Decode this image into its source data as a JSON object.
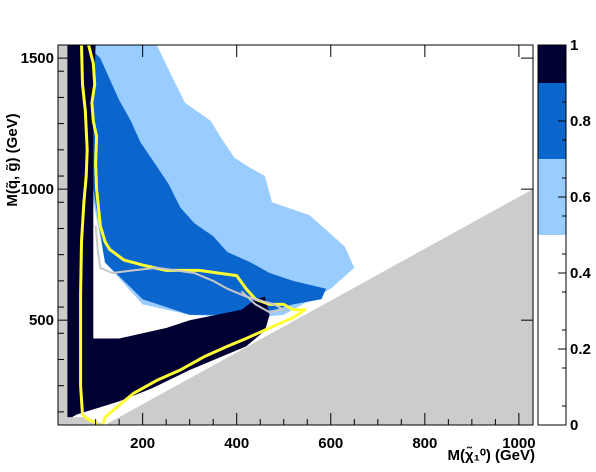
{
  "chart_data": {
    "type": "heatmap",
    "title": "",
    "xlabel": "M(χ̃₁⁰) (GeV)",
    "ylabel": "M(q̃, g̃) (GeV)",
    "xlim": [
      20,
      1030
    ],
    "ylim": [
      100,
      1550
    ],
    "xticks": [
      200,
      400,
      600,
      800,
      1000
    ],
    "xtick_labels": [
      "200",
      "400",
      "600",
      "800",
      "1000"
    ],
    "yticks": [
      500,
      1000,
      1500
    ],
    "ytick_labels": [
      "500",
      "1000",
      "1500"
    ],
    "colorbar": {
      "range": [
        0,
        1
      ],
      "ticks": [
        0,
        0.2,
        0.4,
        0.6,
        0.8,
        1
      ],
      "tick_labels": [
        "0",
        "0.2",
        "0.4",
        "0.6",
        "0.8",
        "1"
      ],
      "bands": [
        {
          "from": 0.9,
          "to": 1.0,
          "color": "#000033"
        },
        {
          "from": 0.7,
          "to": 0.9,
          "color": "#0a66cc"
        },
        {
          "from": 0.5,
          "to": 0.7,
          "color": "#99ccff"
        },
        {
          "from": 0.0,
          "to": 0.5,
          "color": "#ffffff"
        }
      ]
    },
    "excluded_color": "#cccccc",
    "regions": [
      {
        "level": 0.6,
        "color": "#99ccff",
        "boundary": [
          [
            230,
            1550
          ],
          [
            265,
            1420
          ],
          [
            290,
            1330
          ],
          [
            345,
            1260
          ],
          [
            365,
            1200
          ],
          [
            395,
            1120
          ],
          [
            430,
            1080
          ],
          [
            460,
            1050
          ],
          [
            475,
            950
          ],
          [
            555,
            900
          ],
          [
            630,
            780
          ],
          [
            650,
            700
          ],
          [
            600,
            620
          ],
          [
            540,
            560
          ],
          [
            500,
            520
          ],
          [
            430,
            510
          ],
          [
            300,
            520
          ],
          [
            200,
            560
          ],
          [
            120,
            720
          ],
          [
            90,
            1000
          ],
          [
            80,
            1550
          ]
        ]
      },
      {
        "level": 0.8,
        "color": "#0a66cc",
        "boundary": [
          [
            80,
            1550
          ],
          [
            110,
            1500
          ],
          [
            130,
            1420
          ],
          [
            150,
            1340
          ],
          [
            175,
            1260
          ],
          [
            195,
            1180
          ],
          [
            225,
            1100
          ],
          [
            255,
            1020
          ],
          [
            280,
            930
          ],
          [
            310,
            870
          ],
          [
            350,
            820
          ],
          [
            380,
            760
          ],
          [
            430,
            720
          ],
          [
            470,
            680
          ],
          [
            520,
            650
          ],
          [
            590,
            620
          ],
          [
            580,
            580
          ],
          [
            520,
            560
          ],
          [
            480,
            540
          ],
          [
            420,
            520
          ],
          [
            300,
            520
          ],
          [
            200,
            580
          ],
          [
            120,
            720
          ],
          [
            95,
            1000
          ],
          [
            80,
            1550
          ]
        ]
      },
      {
        "level": 1.0,
        "color": "#000033",
        "boundary": [
          [
            60,
            1550
          ],
          [
            100,
            1550
          ],
          [
            95,
            1300
          ],
          [
            95,
            800
          ],
          [
            95,
            430
          ],
          [
            110,
            430
          ],
          [
            150,
            430
          ],
          [
            250,
            470
          ],
          [
            300,
            500
          ],
          [
            410,
            540
          ],
          [
            440,
            580
          ],
          [
            460,
            590
          ],
          [
            470,
            520
          ],
          [
            460,
            460
          ],
          [
            420,
            400
          ],
          [
            300,
            310
          ],
          [
            220,
            240
          ],
          [
            150,
            190
          ],
          [
            60,
            140
          ],
          [
            20,
            100
          ],
          [
            20,
            1550
          ]
        ]
      }
    ],
    "excluded_boundary": [
      [
        20,
        100
      ],
      [
        20,
        1550
      ],
      [
        40,
        1550
      ],
      [
        40,
        130
      ],
      [
        80,
        130
      ],
      [
        120,
        100
      ]
    ],
    "excluded_wedge": [
      [
        120,
        100
      ],
      [
        1030,
        1000
      ],
      [
        1030,
        100
      ]
    ],
    "contours": [
      {
        "name": "",
        "color": "#ffff33",
        "points": [
          [
            70,
            1550
          ],
          [
            72,
            1400
          ],
          [
            78,
            1300
          ],
          [
            82,
            1150
          ],
          [
            80,
            1050
          ],
          [
            75,
            950
          ],
          [
            70,
            800
          ],
          [
            68,
            600
          ],
          [
            68,
            400
          ],
          [
            68,
            250
          ],
          [
            72,
            140
          ],
          [
            85,
            120
          ],
          [
            100,
            110
          ],
          [
            102,
            100
          ]
        ]
      },
      {
        "name": "",
        "color": "#ffff33",
        "points": [
          [
            85,
            1550
          ],
          [
            95,
            1480
          ],
          [
            98,
            1400
          ],
          [
            92,
            1330
          ],
          [
            95,
            1260
          ],
          [
            102,
            1200
          ],
          [
            100,
            1100
          ],
          [
            102,
            1000
          ],
          [
            110,
            860
          ],
          [
            120,
            800
          ],
          [
            130,
            770
          ],
          [
            160,
            730
          ],
          [
            200,
            710
          ],
          [
            250,
            690
          ],
          [
            280,
            690
          ],
          [
            320,
            690
          ],
          [
            360,
            680
          ],
          [
            400,
            670
          ],
          [
            420,
            620
          ],
          [
            440,
            580
          ],
          [
            470,
            560
          ],
          [
            500,
            560
          ],
          [
            520,
            540
          ],
          [
            545,
            540
          ],
          [
            520,
            510
          ],
          [
            470,
            470
          ],
          [
            420,
            430
          ],
          [
            380,
            400
          ],
          [
            330,
            360
          ],
          [
            280,
            310
          ],
          [
            230,
            270
          ],
          [
            180,
            220
          ],
          [
            140,
            160
          ],
          [
            120,
            130
          ],
          [
            115,
            100
          ]
        ]
      },
      {
        "name": "",
        "color": "#c8c8c8",
        "points": [
          [
            100,
            860
          ],
          [
            105,
            760
          ],
          [
            110,
            700
          ],
          [
            135,
            680
          ],
          [
            180,
            690
          ],
          [
            230,
            700
          ],
          [
            270,
            690
          ],
          [
            310,
            680
          ],
          [
            350,
            650
          ],
          [
            380,
            620
          ],
          [
            420,
            590
          ],
          [
            450,
            575
          ],
          [
            480,
            560
          ],
          [
            500,
            540
          ],
          [
            470,
            530
          ],
          [
            440,
            560
          ],
          [
            410,
            610
          ]
        ]
      }
    ]
  }
}
